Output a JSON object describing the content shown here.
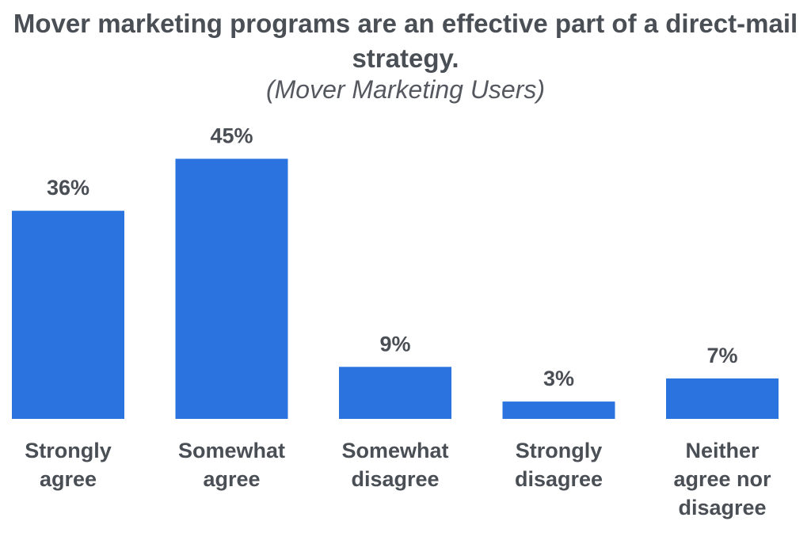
{
  "chart_data": {
    "type": "bar",
    "title": "Mover marketing programs are an effective part of a direct-mail strategy.",
    "subtitle": "(Mover Marketing Users)",
    "categories": [
      "Strongly agree",
      "Somewhat agree",
      "Somewhat disagree",
      "Strongly disagree",
      "Neither agree nor disagree"
    ],
    "category_lines": [
      [
        "Strongly",
        "agree"
      ],
      [
        "Somewhat",
        "agree"
      ],
      [
        "Somewhat",
        "disagree"
      ],
      [
        "Strongly",
        "disagree"
      ],
      [
        "Neither",
        "agree nor",
        "disagree"
      ]
    ],
    "values": [
      36,
      45,
      9,
      3,
      7
    ],
    "value_labels": [
      "36%",
      "45%",
      "9%",
      "3%",
      "7%"
    ],
    "unit": "%",
    "xlabel": "",
    "ylabel": "",
    "grid": false,
    "legend": "none",
    "bar_color": "#2b74df"
  }
}
